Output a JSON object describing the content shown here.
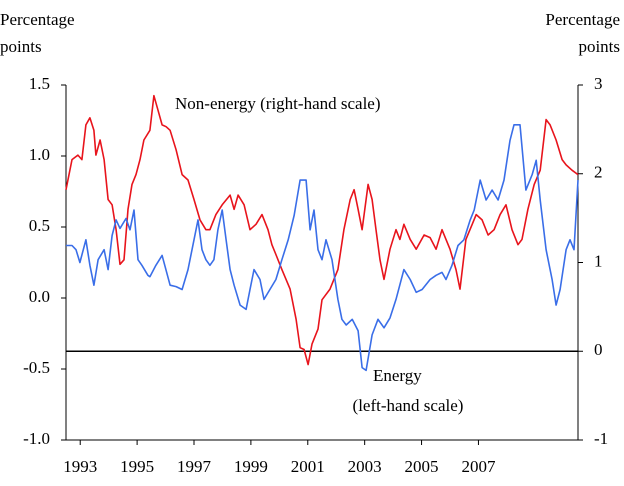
{
  "chart_data": {
    "type": "line",
    "ylabel": "Percentage points",
    "y2label": "Percentage points",
    "annotations": [
      "Non-energy (right-hand scale)",
      "Energy",
      "(left-hand scale)"
    ],
    "xlim": [
      1992.5,
      2010.5
    ],
    "xticks": [
      1993,
      1995,
      1997,
      1999,
      2001,
      2003,
      2005,
      2007
    ],
    "ylim": [
      -1.0,
      1.5
    ],
    "yticks": [
      {
        "value": -1.0,
        "label": "-1.0"
      },
      -0.5,
      {
        "value": 0.0,
        "label": "0.0"
      },
      0.5,
      {
        "value": 1.0,
        "label": "1.0"
      },
      1.5
    ],
    "y2lim": [
      -1,
      3
    ],
    "y2ticks": [
      -1,
      0,
      1,
      2,
      3
    ],
    "grid": false,
    "series": [
      {
        "name": "Non-energy",
        "color": "#e8141c",
        "axis": "y2",
        "x": [
          1992.5,
          1992.71,
          1992.92,
          1993.06,
          1993.2,
          1993.34,
          1993.48,
          1993.55,
          1993.7,
          1993.84,
          1993.98,
          1994.12,
          1994.26,
          1994.4,
          1994.54,
          1994.68,
          1994.82,
          1994.96,
          1995.1,
          1995.24,
          1995.45,
          1995.59,
          1995.73,
          1995.88,
          1996.02,
          1996.16,
          1996.37,
          1996.58,
          1996.79,
          1997.0,
          1997.21,
          1997.42,
          1997.56,
          1997.77,
          1997.99,
          1998.27,
          1998.41,
          1998.55,
          1998.76,
          1998.97,
          1999.18,
          1999.39,
          1999.6,
          1999.74,
          1999.88,
          2000.09,
          2000.38,
          2000.59,
          2000.73,
          2000.87,
          2001.01,
          2001.15,
          2001.36,
          2001.5,
          2001.78,
          2002.06,
          2002.27,
          2002.49,
          2002.63,
          2002.77,
          2002.91,
          2003.12,
          2003.26,
          2003.4,
          2003.54,
          2003.68,
          2003.89,
          2004.1,
          2004.24,
          2004.38,
          2004.6,
          2004.81,
          2005.09,
          2005.3,
          2005.51,
          2005.72,
          2006.0,
          2006.21,
          2006.35,
          2006.56,
          2006.78,
          2006.92,
          2007.13,
          2007.34,
          2007.55,
          2007.76,
          2007.97,
          2008.18,
          2008.39,
          2008.53,
          2008.74,
          2008.96,
          2009.17,
          2009.38,
          2009.52,
          2009.73,
          2009.94,
          2010.08,
          2010.29,
          2010.5
        ],
        "values": [
          1.82,
          2.16,
          2.21,
          2.16,
          2.55,
          2.63,
          2.49,
          2.21,
          2.38,
          2.16,
          1.71,
          1.65,
          1.37,
          0.98,
          1.03,
          1.6,
          1.88,
          1.99,
          2.16,
          2.38,
          2.49,
          2.88,
          2.72,
          2.55,
          2.53,
          2.49,
          2.27,
          1.99,
          1.93,
          1.71,
          1.48,
          1.37,
          1.37,
          1.54,
          1.65,
          1.76,
          1.6,
          1.76,
          1.65,
          1.37,
          1.43,
          1.54,
          1.37,
          1.2,
          1.09,
          0.92,
          0.7,
          0.36,
          0.04,
          0.02,
          -0.15,
          0.08,
          0.25,
          0.58,
          0.7,
          0.92,
          1.37,
          1.71,
          1.82,
          1.6,
          1.37,
          1.88,
          1.71,
          1.37,
          1.03,
          0.81,
          1.15,
          1.37,
          1.26,
          1.43,
          1.26,
          1.15,
          1.31,
          1.28,
          1.15,
          1.37,
          1.15,
          0.92,
          0.7,
          1.26,
          1.43,
          1.54,
          1.48,
          1.31,
          1.37,
          1.54,
          1.65,
          1.37,
          1.2,
          1.26,
          1.6,
          1.88,
          2.04,
          2.61,
          2.55,
          2.38,
          2.16,
          2.1,
          2.04,
          1.99
        ]
      },
      {
        "name": "Energy",
        "color": "#3a6ee8",
        "x": [
          1992.5,
          1992.71,
          1992.85,
          1992.99,
          1993.2,
          1993.34,
          1993.48,
          1993.63,
          1993.84,
          1993.98,
          1994.12,
          1994.26,
          1994.4,
          1994.61,
          1994.75,
          1994.89,
          1995.03,
          1995.17,
          1995.38,
          1995.45,
          1995.66,
          1995.88,
          1996.16,
          1996.37,
          1996.58,
          1996.79,
          1997.0,
          1997.14,
          1997.28,
          1997.42,
          1997.56,
          1997.7,
          1997.84,
          1997.99,
          1998.13,
          1998.27,
          1998.41,
          1998.62,
          1998.83,
          1998.97,
          1999.11,
          1999.32,
          1999.46,
          1999.67,
          1999.88,
          2000.09,
          2000.31,
          2000.52,
          2000.73,
          2000.94,
          2001.08,
          2001.22,
          2001.36,
          2001.5,
          2001.64,
          2001.85,
          2002.06,
          2002.2,
          2002.35,
          2002.56,
          2002.77,
          2002.91,
          2003.05,
          2003.26,
          2003.47,
          2003.68,
          2003.89,
          2004.1,
          2004.38,
          2004.6,
          2004.81,
          2005.02,
          2005.3,
          2005.51,
          2005.72,
          2005.86,
          2006.07,
          2006.28,
          2006.49,
          2006.71,
          2006.85,
          2007.06,
          2007.27,
          2007.48,
          2007.69,
          2007.9,
          2008.11,
          2008.25,
          2008.46,
          2008.67,
          2008.89,
          2009.03,
          2009.17,
          2009.38,
          2009.59,
          2009.73,
          2009.87,
          2010.08,
          2010.22,
          2010.36,
          2010.5
        ],
        "values": [
          0.37,
          0.37,
          0.34,
          0.25,
          0.41,
          0.23,
          0.09,
          0.27,
          0.34,
          0.2,
          0.44,
          0.55,
          0.49,
          0.56,
          0.48,
          0.62,
          0.27,
          0.23,
          0.16,
          0.15,
          0.23,
          0.3,
          0.09,
          0.08,
          0.06,
          0.2,
          0.41,
          0.55,
          0.34,
          0.27,
          0.23,
          0.27,
          0.48,
          0.62,
          0.41,
          0.2,
          0.09,
          -0.05,
          -0.08,
          0.06,
          0.2,
          0.13,
          -0.01,
          0.06,
          0.13,
          0.27,
          0.41,
          0.58,
          0.83,
          0.83,
          0.48,
          0.62,
          0.34,
          0.27,
          0.41,
          0.27,
          -0.01,
          -0.15,
          -0.19,
          -0.15,
          -0.23,
          -0.49,
          -0.51,
          -0.26,
          -0.15,
          -0.21,
          -0.14,
          -0.01,
          0.2,
          0.13,
          0.04,
          0.06,
          0.13,
          0.16,
          0.18,
          0.13,
          0.23,
          0.37,
          0.41,
          0.55,
          0.62,
          0.83,
          0.69,
          0.76,
          0.69,
          0.83,
          1.11,
          1.22,
          1.22,
          0.76,
          0.87,
          0.97,
          0.69,
          0.34,
          0.13,
          -0.05,
          0.06,
          0.34,
          0.41,
          0.34,
          0.83
        ]
      }
    ]
  }
}
